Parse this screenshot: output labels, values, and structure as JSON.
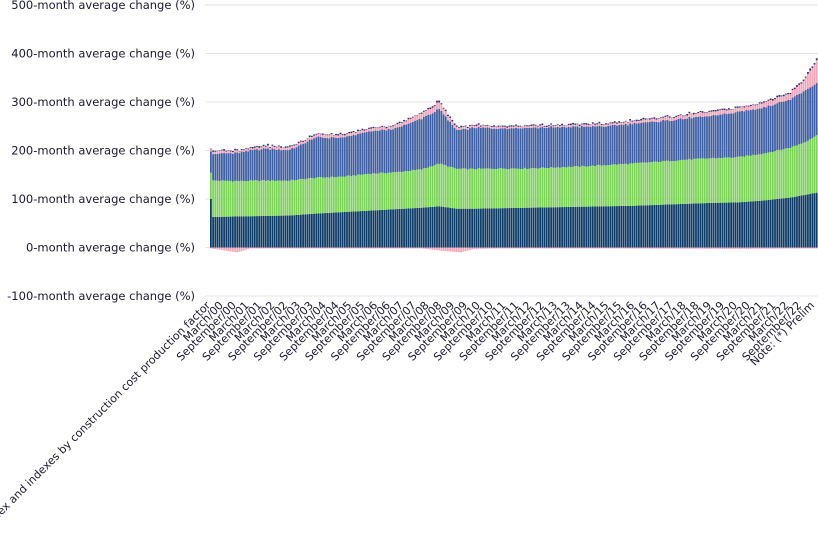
{
  "chart_data": {
    "type": "bar",
    "stacked": true,
    "title": "",
    "xlabel": "",
    "ylabel": "",
    "ylim": [
      -100,
      500
    ],
    "y_ticks": [
      "500-month average change (%)",
      "400-month average change (%)",
      "300-month average change (%)",
      "200-month average change (%)",
      "100-month average change (%)",
      "0-month average change (%)",
      "-100-month average change (%)"
    ],
    "y_tick_values": [
      500,
      400,
      300,
      200,
      100,
      0,
      -100
    ],
    "x_ticks": [
      "index and indexes by construction cost production factor",
      "March/00",
      "September/00",
      "March/01",
      "September/01",
      "March/02",
      "September/02",
      "March/03",
      "September/03",
      "March/04",
      "September/04",
      "March/05",
      "September/05",
      "March/06",
      "September/06",
      "March/07",
      "September/07",
      "March/08",
      "September/08",
      "March/09",
      "September/09",
      "March/10",
      "September/10",
      "March/11",
      "September/11",
      "March/12",
      "September/12",
      "March/13",
      "September/13",
      "March/14",
      "September/14",
      "March/15",
      "September/15",
      "March/16",
      "September/16",
      "March/17",
      "September/17",
      "March/18",
      "September/18",
      "March/19",
      "September/19",
      "March/20",
      "September/20",
      "March/21",
      "September/21",
      "March/22",
      "September/22",
      "Note: (*) Prelim"
    ],
    "grid": true,
    "legend": "none",
    "x_start": "1999-12",
    "x_end": "2022-12",
    "series": [
      {
        "color": "#0d3b66",
        "anchors": [
          [
            0,
            100
          ],
          [
            1,
            63
          ],
          [
            12,
            64
          ],
          [
            24,
            65
          ],
          [
            36,
            66
          ],
          [
            48,
            70
          ],
          [
            60,
            73
          ],
          [
            72,
            76
          ],
          [
            84,
            79
          ],
          [
            96,
            82
          ],
          [
            104,
            85
          ],
          [
            112,
            80
          ],
          [
            120,
            80
          ],
          [
            132,
            81
          ],
          [
            144,
            82
          ],
          [
            156,
            83
          ],
          [
            168,
            84
          ],
          [
            180,
            85
          ],
          [
            192,
            86
          ],
          [
            204,
            88
          ],
          [
            216,
            90
          ],
          [
            228,
            92
          ],
          [
            240,
            93
          ],
          [
            252,
            97
          ],
          [
            264,
            103
          ],
          [
            270,
            108
          ],
          [
            276,
            113
          ]
        ]
      },
      {
        "color": "#7dd35a",
        "anchors": [
          [
            0,
            55
          ],
          [
            1,
            75
          ],
          [
            12,
            73
          ],
          [
            24,
            73
          ],
          [
            36,
            72
          ],
          [
            48,
            74
          ],
          [
            60,
            73
          ],
          [
            72,
            76
          ],
          [
            84,
            76
          ],
          [
            96,
            79
          ],
          [
            104,
            88
          ],
          [
            112,
            82
          ],
          [
            120,
            82
          ],
          [
            132,
            82
          ],
          [
            144,
            81
          ],
          [
            156,
            82
          ],
          [
            168,
            83
          ],
          [
            180,
            85
          ],
          [
            192,
            87
          ],
          [
            204,
            89
          ],
          [
            216,
            91
          ],
          [
            228,
            92
          ],
          [
            240,
            93
          ],
          [
            252,
            97
          ],
          [
            264,
            103
          ],
          [
            270,
            108
          ],
          [
            276,
            118
          ]
        ]
      },
      {
        "color": "#3f5fa3",
        "anchors": [
          [
            0,
            45
          ],
          [
            1,
            55
          ],
          [
            12,
            58
          ],
          [
            24,
            66
          ],
          [
            36,
            63
          ],
          [
            48,
            83
          ],
          [
            60,
            80
          ],
          [
            72,
            87
          ],
          [
            84,
            90
          ],
          [
            96,
            105
          ],
          [
            104,
            112
          ],
          [
            112,
            80
          ],
          [
            120,
            85
          ],
          [
            132,
            83
          ],
          [
            144,
            84
          ],
          [
            156,
            83
          ],
          [
            168,
            82
          ],
          [
            180,
            80
          ],
          [
            192,
            82
          ],
          [
            204,
            83
          ],
          [
            216,
            85
          ],
          [
            228,
            87
          ],
          [
            240,
            93
          ],
          [
            252,
            95
          ],
          [
            264,
            100
          ],
          [
            270,
            106
          ],
          [
            276,
            107
          ]
        ]
      },
      {
        "color": "#f4a6b8",
        "anchors": [
          [
            0,
            5
          ],
          [
            12,
            4
          ],
          [
            24,
            5
          ],
          [
            36,
            5
          ],
          [
            48,
            6
          ],
          [
            60,
            5
          ],
          [
            72,
            5
          ],
          [
            84,
            6
          ],
          [
            96,
            10
          ],
          [
            104,
            14
          ],
          [
            112,
            5
          ],
          [
            120,
            4
          ],
          [
            132,
            3
          ],
          [
            144,
            3
          ],
          [
            156,
            3
          ],
          [
            168,
            4
          ],
          [
            180,
            4
          ],
          [
            192,
            5
          ],
          [
            204,
            6
          ],
          [
            216,
            7
          ],
          [
            228,
            8
          ],
          [
            240,
            8
          ],
          [
            252,
            10
          ],
          [
            264,
            13
          ],
          [
            270,
            22
          ],
          [
            276,
            46
          ]
        ]
      },
      {
        "color": "#2a2a6e",
        "anchors": [
          [
            0,
            2
          ],
          [
            12,
            2
          ],
          [
            24,
            2
          ],
          [
            36,
            2
          ],
          [
            48,
            2
          ],
          [
            60,
            2
          ],
          [
            72,
            2
          ],
          [
            84,
            2
          ],
          [
            96,
            2
          ],
          [
            104,
            3
          ],
          [
            112,
            2
          ],
          [
            120,
            2
          ],
          [
            132,
            2
          ],
          [
            144,
            2
          ],
          [
            156,
            2
          ],
          [
            168,
            2
          ],
          [
            180,
            2
          ],
          [
            192,
            2
          ],
          [
            204,
            2
          ],
          [
            216,
            2
          ],
          [
            228,
            2
          ],
          [
            240,
            2
          ],
          [
            252,
            2
          ],
          [
            264,
            3
          ],
          [
            270,
            3
          ],
          [
            276,
            4
          ]
        ]
      },
      {
        "color": "#f4a6b8",
        "negative": true,
        "anchors": [
          [
            0,
            -2
          ],
          [
            12,
            -10
          ],
          [
            18,
            -2
          ],
          [
            48,
            -2
          ],
          [
            96,
            -2
          ],
          [
            108,
            -8
          ],
          [
            114,
            -10
          ],
          [
            120,
            -3
          ],
          [
            132,
            -2
          ],
          [
            180,
            -2
          ],
          [
            240,
            -3
          ],
          [
            276,
            -2
          ]
        ]
      }
    ]
  }
}
